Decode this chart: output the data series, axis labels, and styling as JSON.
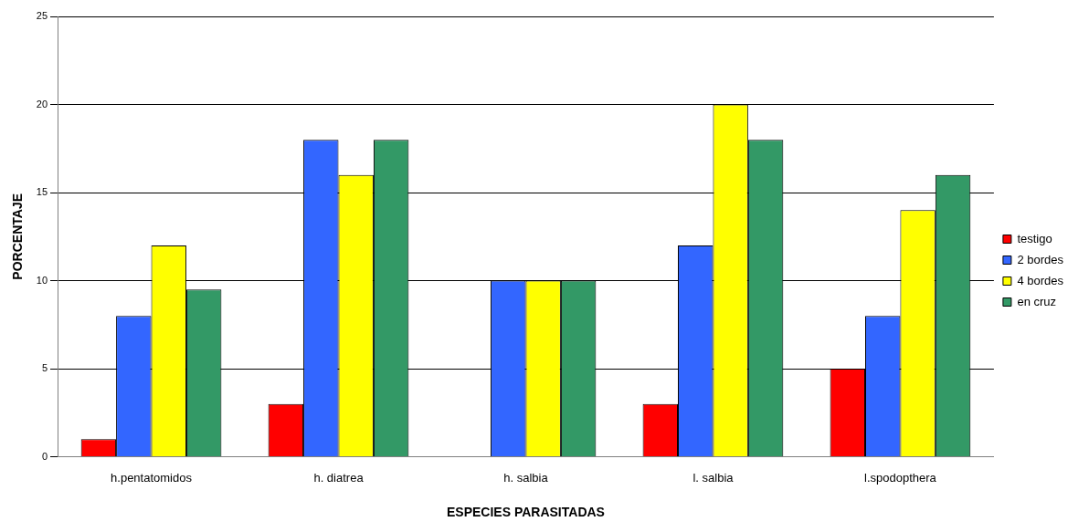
{
  "chart_data": {
    "type": "bar",
    "xlabel": "ESPECIES PARASITADAS",
    "ylabel": "PORCENTAJE",
    "categories": [
      "h.pentatomidos",
      "h. diatrea",
      "h. salbia",
      "l. salbia",
      "l.spodopthera"
    ],
    "series": [
      {
        "name": "testigo",
        "color": "#ff0000",
        "values": [
          1,
          3,
          0,
          3,
          5
        ]
      },
      {
        "name": "2 bordes",
        "color": "#3366ff",
        "values": [
          8,
          18,
          10,
          12,
          8
        ]
      },
      {
        "name": "4 bordes",
        "color": "#ffff00",
        "values": [
          12,
          16,
          10,
          20,
          14
        ]
      },
      {
        "name": "en cruz",
        "color": "#339966",
        "values": [
          9.5,
          18,
          10,
          18,
          16
        ]
      }
    ],
    "ylim": [
      0,
      25
    ],
    "yticks": [
      0,
      5,
      10,
      15,
      20,
      25
    ],
    "grid": "y",
    "legend": "right"
  }
}
